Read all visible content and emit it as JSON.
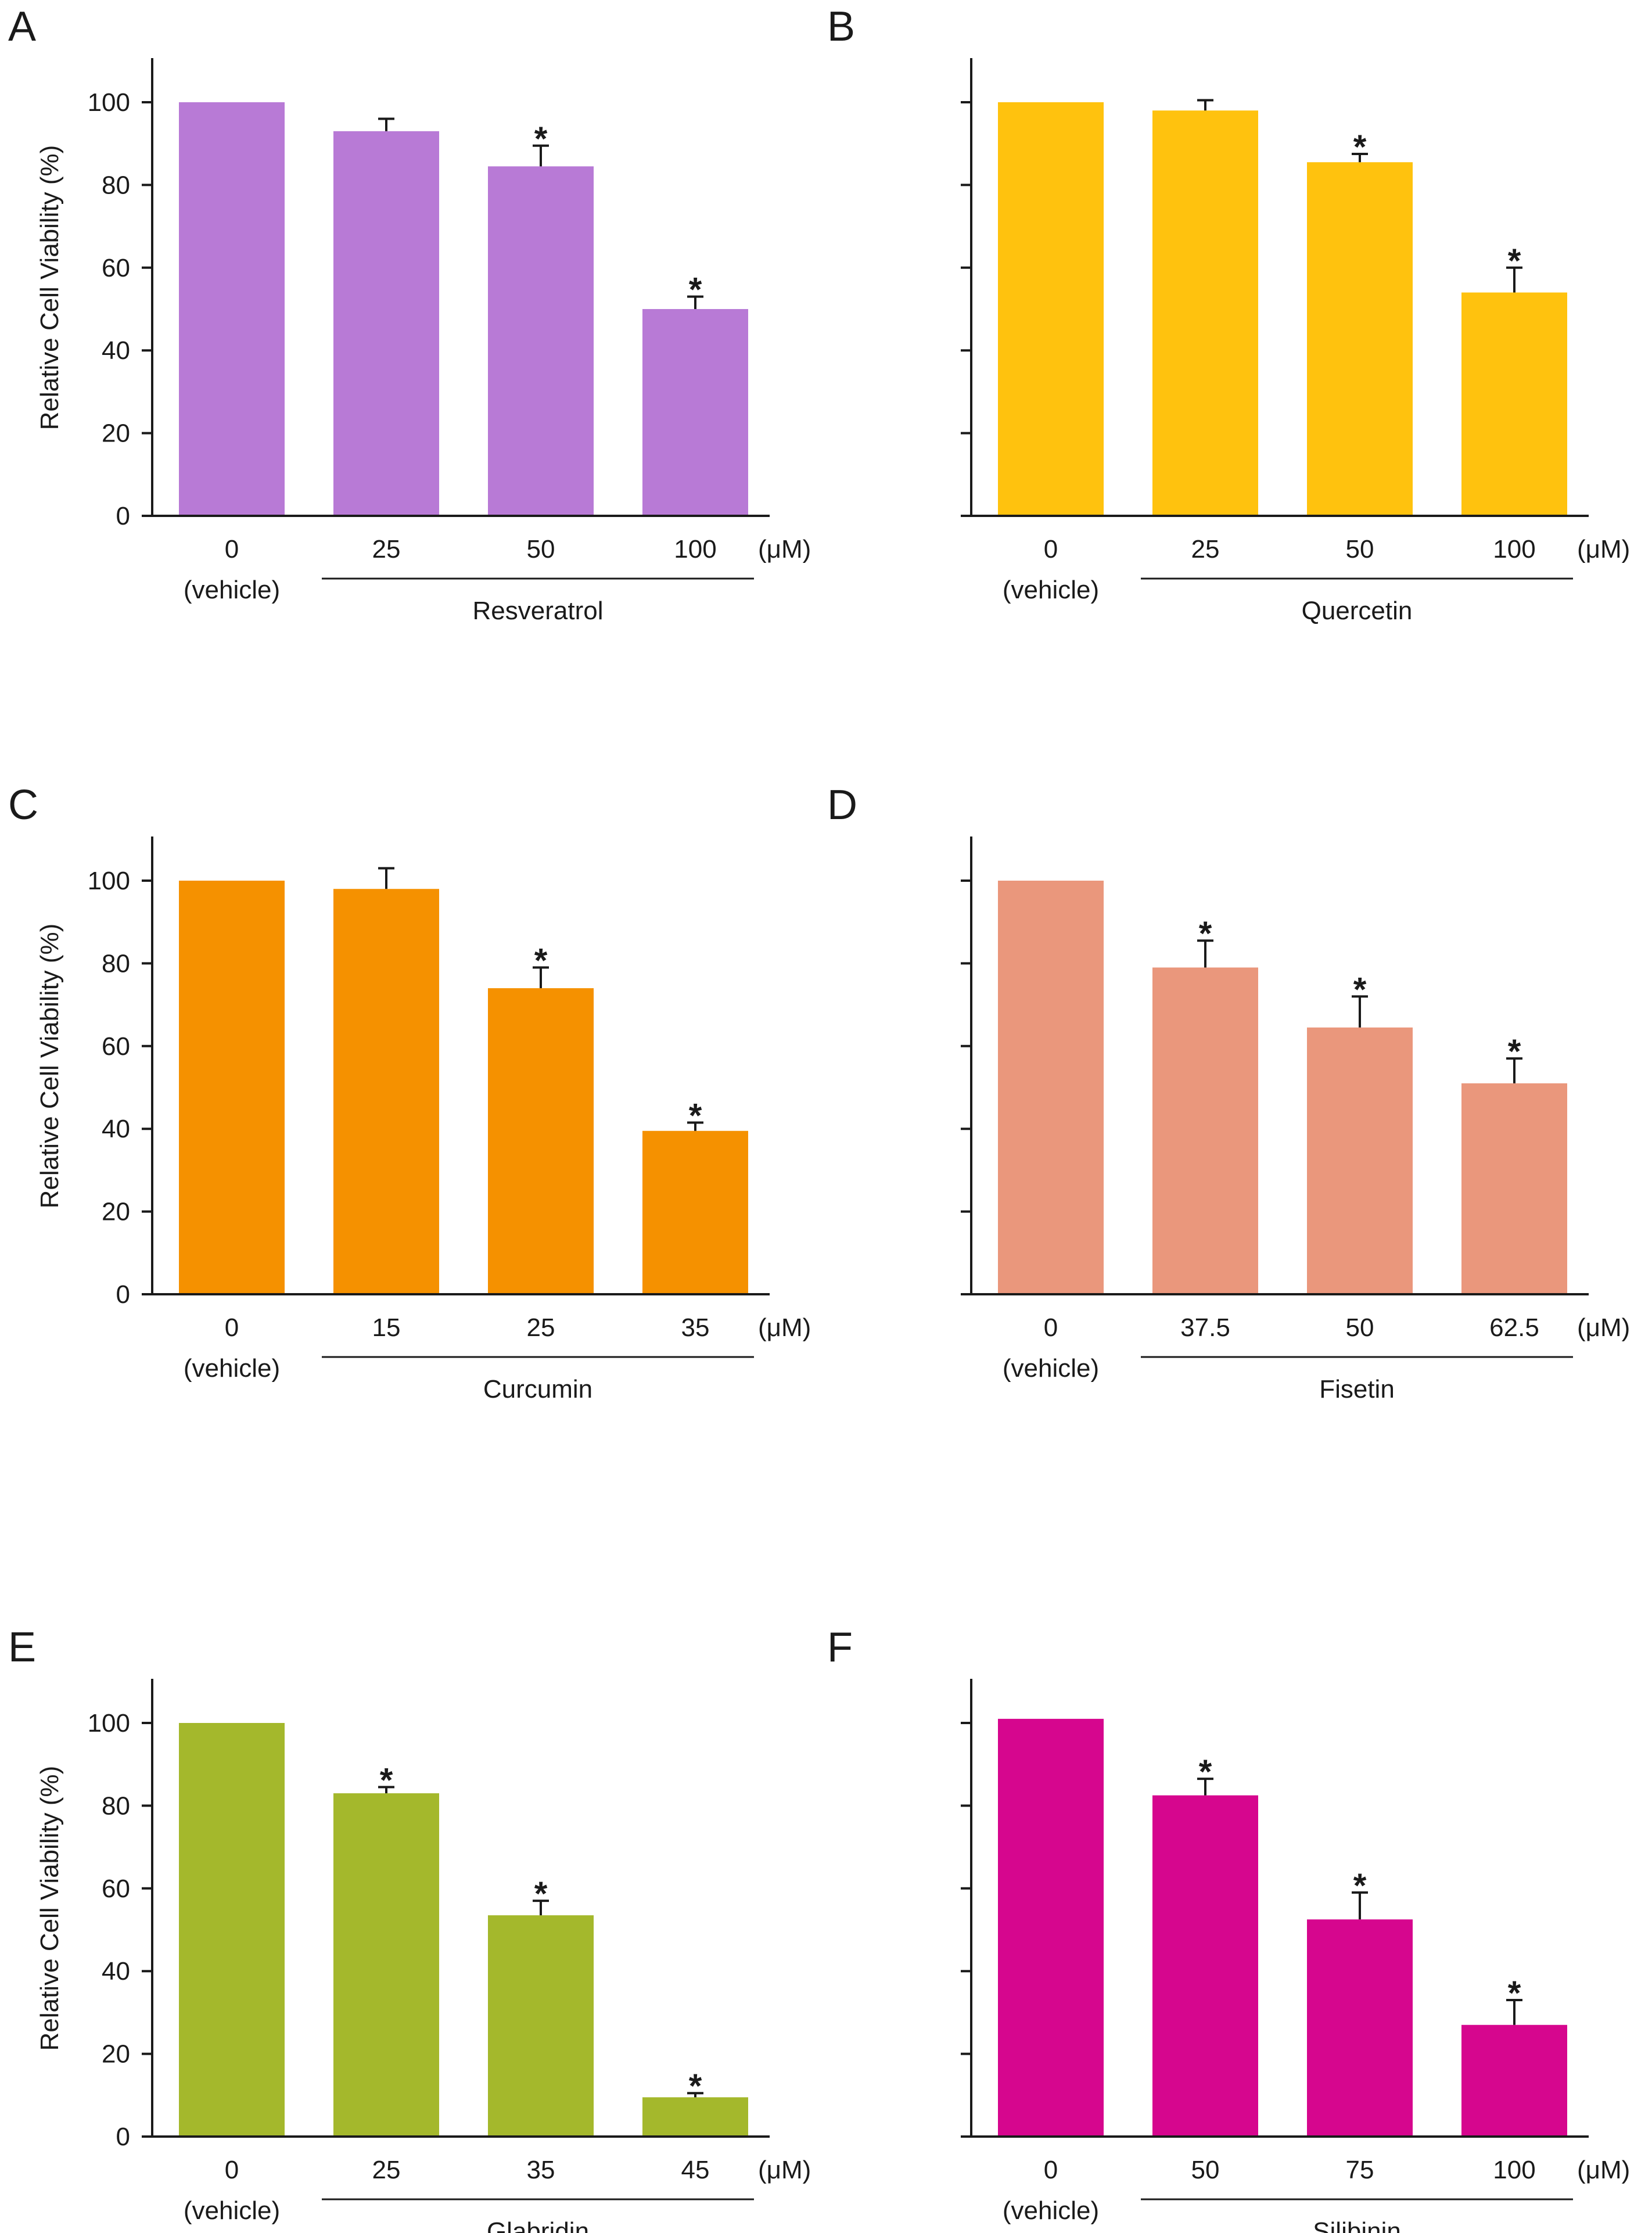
{
  "figure": {
    "unit_label": "(μM)",
    "vehicle_label": "(vehicle)",
    "significance_marker": "*",
    "axis_color": "#1a1a1a"
  },
  "chart_data": [
    {
      "panel": "A",
      "type": "bar",
      "compound": "Resveratrol",
      "categories": [
        "0",
        "25",
        "50",
        "100"
      ],
      "values": [
        100,
        93,
        84.5,
        50
      ],
      "errors": [
        0,
        3,
        5,
        3
      ],
      "significant": [
        false,
        false,
        true,
        true
      ],
      "color": "#b87ad6",
      "ylabel": "Relative Cell Viability (%)",
      "yticks": [
        "0",
        "20",
        "40",
        "60",
        "80",
        "100"
      ],
      "show_ytick_labels": true,
      "ylim": [
        0,
        110
      ]
    },
    {
      "panel": "B",
      "type": "bar",
      "compound": "Quercetin",
      "categories": [
        "0",
        "25",
        "50",
        "100"
      ],
      "values": [
        100,
        98,
        85.5,
        54
      ],
      "errors": [
        0,
        2.5,
        2,
        6
      ],
      "significant": [
        false,
        false,
        true,
        true
      ],
      "color": "#ffc20e",
      "ylabel": "",
      "yticks": [],
      "show_ytick_labels": false,
      "ylim": [
        0,
        110
      ]
    },
    {
      "panel": "C",
      "type": "bar",
      "compound": "Curcumin",
      "categories": [
        "0",
        "15",
        "25",
        "35"
      ],
      "values": [
        100,
        98,
        74,
        39.5
      ],
      "errors": [
        0,
        5,
        5,
        2
      ],
      "significant": [
        false,
        false,
        true,
        true
      ],
      "color": "#f59100",
      "ylabel": "Relative Cell Viability (%)",
      "yticks": [
        "0",
        "20",
        "40",
        "60",
        "80",
        "100"
      ],
      "show_ytick_labels": true,
      "ylim": [
        0,
        110
      ]
    },
    {
      "panel": "D",
      "type": "bar",
      "compound": "Fisetin",
      "categories": [
        "0",
        "37.5",
        "50",
        "62.5"
      ],
      "values": [
        100,
        79,
        64.5,
        51
      ],
      "errors": [
        0,
        6.5,
        7.5,
        6
      ],
      "significant": [
        false,
        true,
        true,
        true
      ],
      "color": "#ea977c",
      "ylabel": "",
      "yticks": [],
      "show_ytick_labels": false,
      "ylim": [
        0,
        110
      ]
    },
    {
      "panel": "E",
      "type": "bar",
      "compound": "Glabridin",
      "categories": [
        "0",
        "25",
        "35",
        "45"
      ],
      "values": [
        100,
        83,
        53.5,
        9.5
      ],
      "errors": [
        0,
        1.5,
        3.5,
        1
      ],
      "significant": [
        false,
        true,
        true,
        true
      ],
      "color": "#a4b82c",
      "ylabel": "Relative Cell Viability (%)",
      "yticks": [
        "0",
        "20",
        "40",
        "60",
        "80",
        "100"
      ],
      "show_ytick_labels": true,
      "ylim": [
        0,
        110
      ]
    },
    {
      "panel": "F",
      "type": "bar",
      "compound": "Silibinin",
      "categories": [
        "0",
        "50",
        "75",
        "100"
      ],
      "values": [
        101,
        82.5,
        52.5,
        27
      ],
      "errors": [
        0,
        4,
        6.5,
        6
      ],
      "significant": [
        false,
        true,
        true,
        true
      ],
      "color": "#d6068e",
      "ylabel": "",
      "yticks": [],
      "show_ytick_labels": false,
      "ylim": [
        0,
        110
      ]
    }
  ]
}
